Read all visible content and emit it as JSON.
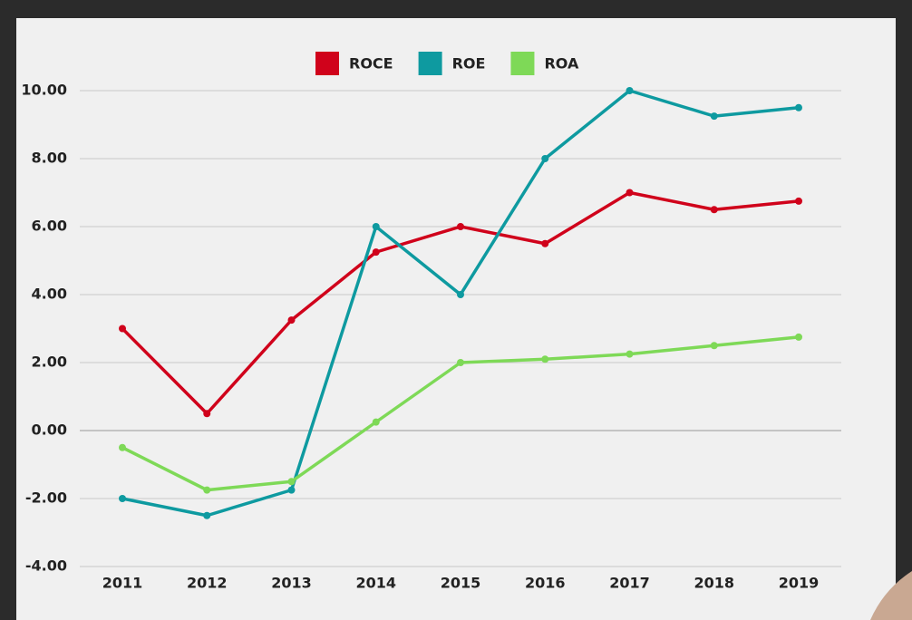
{
  "chart_data": {
    "type": "line",
    "categories": [
      "2011",
      "2012",
      "2013",
      "2014",
      "2015",
      "2016",
      "2017",
      "2018",
      "2019"
    ],
    "series": [
      {
        "name": "ROCE",
        "color": "#d0021b",
        "values": [
          3,
          0.5,
          3.25,
          5.25,
          6,
          5.5,
          7,
          6.5,
          6.75
        ]
      },
      {
        "name": "ROE",
        "color": "#0e9aa0",
        "values": [
          -2,
          -2.5,
          -1.75,
          6,
          4,
          8,
          10,
          9.25,
          9.5
        ]
      },
      {
        "name": "ROA",
        "color": "#7ed957",
        "values": [
          -0.5,
          -1.75,
          -1.5,
          0.25,
          2,
          2.1,
          2.25,
          2.5,
          2.75
        ]
      }
    ],
    "ylim": [
      -4,
      10
    ],
    "yticks": [
      {
        "value": -4,
        "label": "-4.00"
      },
      {
        "value": -2,
        "label": "-2.00"
      },
      {
        "value": 0,
        "label": "0.00"
      },
      {
        "value": 2,
        "label": "2.00"
      },
      {
        "value": 4,
        "label": "4.00"
      },
      {
        "value": 6,
        "label": "6.00"
      },
      {
        "value": 8,
        "label": "8.00"
      },
      {
        "value": 10,
        "label": "10.00"
      }
    ],
    "grid": true,
    "legend": "top"
  }
}
